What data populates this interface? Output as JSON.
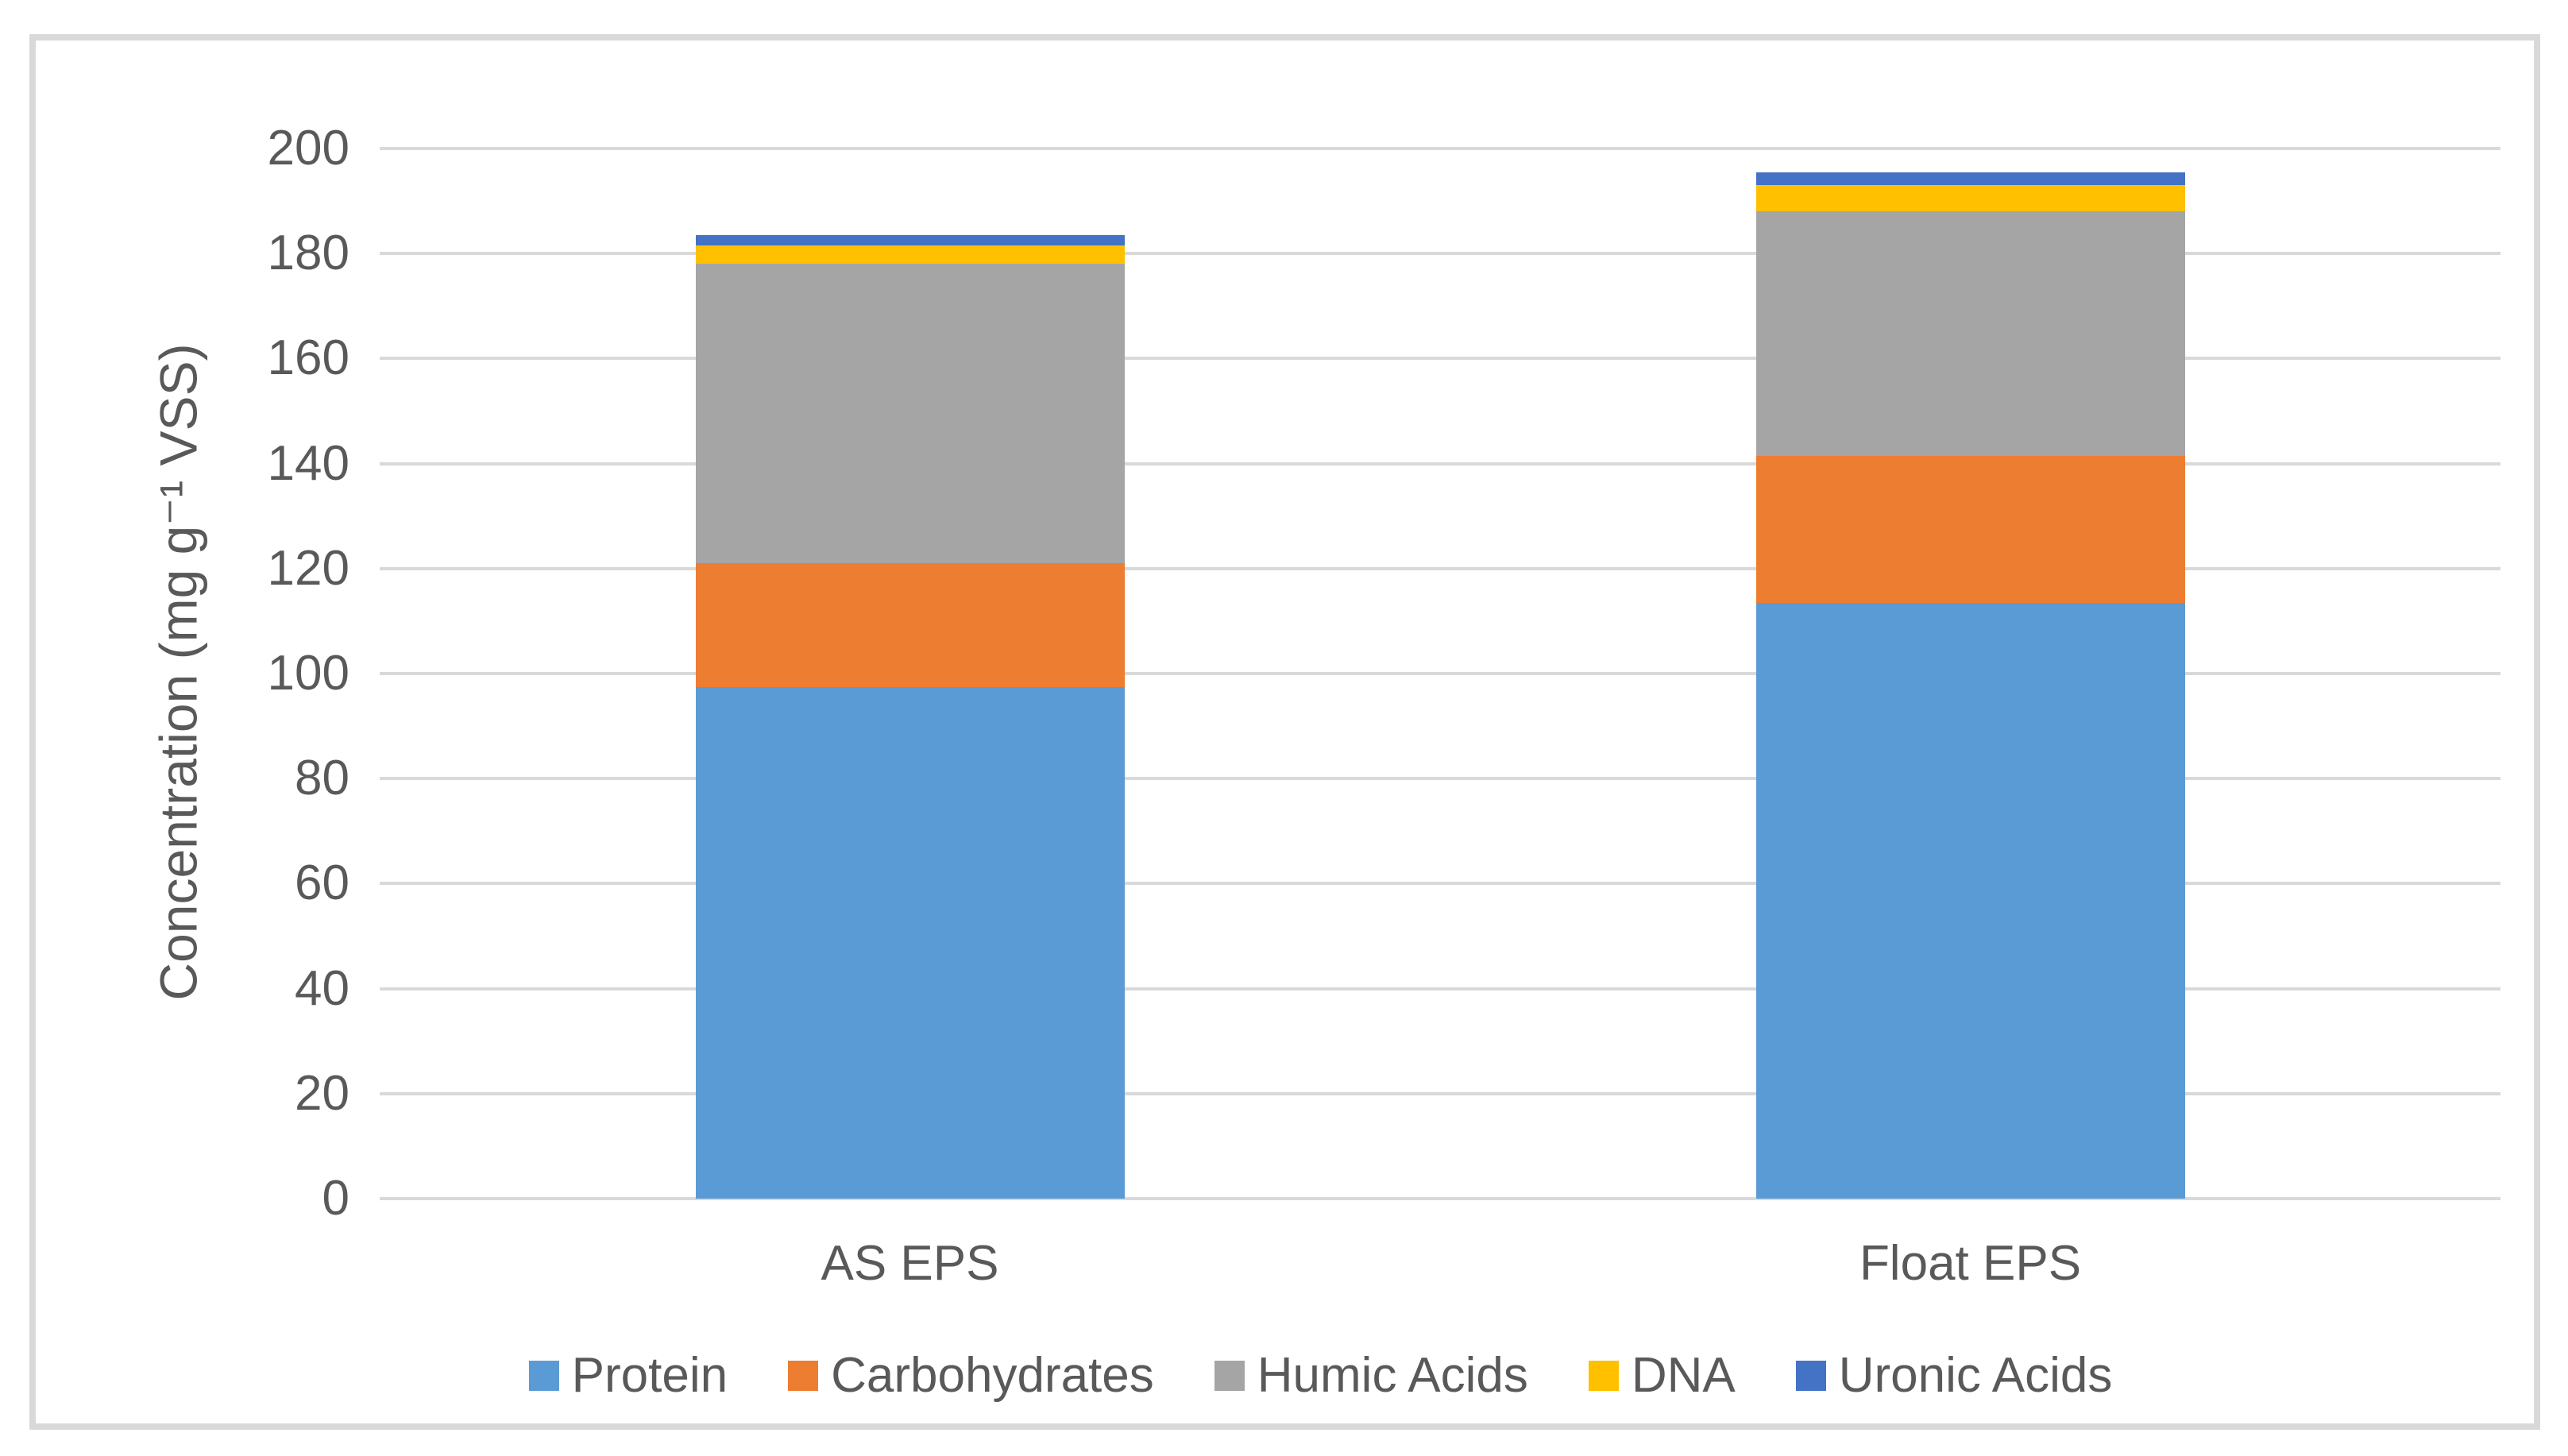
{
  "figure": {
    "background_color": "#FFFFFF",
    "border_color": "#D9D9D9",
    "text_color": "#595959",
    "gridline_color": "#D9D9D9"
  },
  "chart_data": {
    "type": "bar",
    "stacked": true,
    "title": "",
    "xlabel": "",
    "ylabel": "Concentration (mg g⁻¹ VSS)",
    "ylim": [
      0,
      200
    ],
    "yticks": [
      0,
      20,
      40,
      60,
      80,
      100,
      120,
      140,
      160,
      180,
      200
    ],
    "grid": true,
    "legend_position": "bottom",
    "categories": [
      "AS EPS",
      "Float EPS"
    ],
    "series": [
      {
        "name": "Protein",
        "color": "#5B9BD5",
        "values": [
          97.5,
          113.5
        ]
      },
      {
        "name": "Carbohydrates",
        "color": "#ED7D31",
        "values": [
          23.5,
          28.0
        ]
      },
      {
        "name": "Humic Acids",
        "color": "#A5A5A5",
        "values": [
          57.0,
          46.5
        ]
      },
      {
        "name": "DNA",
        "color": "#FFC000",
        "values": [
          3.5,
          5.0
        ]
      },
      {
        "name": "Uronic Acids",
        "color": "#4472C4",
        "values": [
          2.0,
          2.5
        ]
      }
    ],
    "stack_totals": [
      183.5,
      195.5
    ]
  }
}
